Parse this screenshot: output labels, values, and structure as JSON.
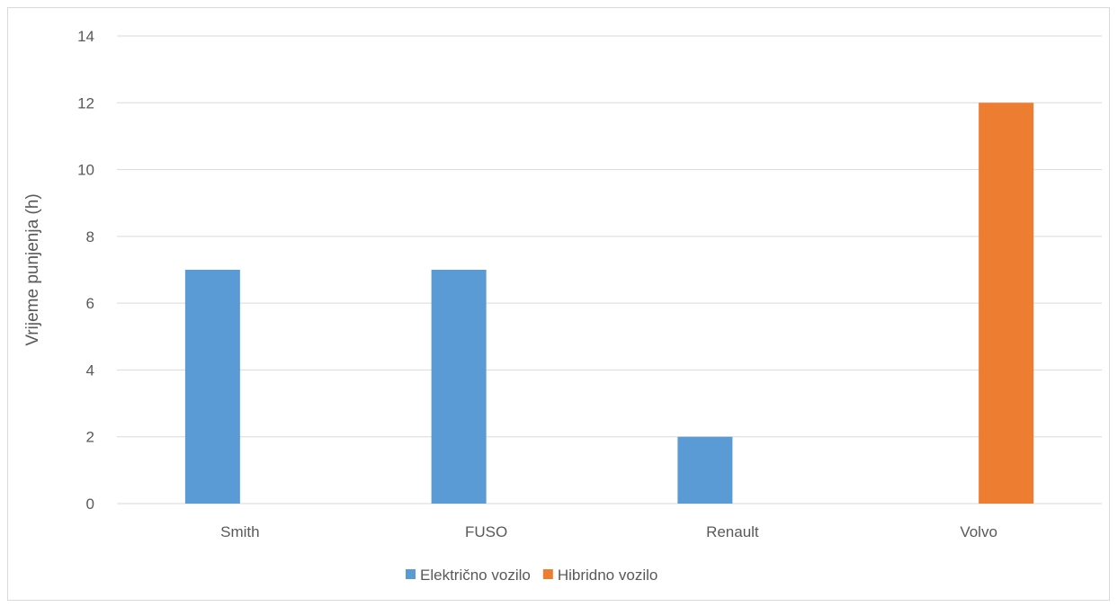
{
  "chart_data": {
    "type": "bar",
    "title": "",
    "xlabel": "",
    "ylabel": "Vrijeme punjenja (h)",
    "categories": [
      "Smith",
      "FUSO",
      "Renault",
      "Volvo"
    ],
    "ylim": [
      0,
      14
    ],
    "yticks": [
      0,
      2,
      4,
      6,
      8,
      10,
      12,
      14
    ],
    "grid": true,
    "legend_position": "bottom",
    "series": [
      {
        "name": "Električno vozilo",
        "color": "#5b9bd5",
        "values": [
          7,
          7,
          2,
          null
        ]
      },
      {
        "name": "Hibridno vozilo",
        "color": "#ed7d31",
        "values": [
          null,
          null,
          null,
          12
        ]
      }
    ]
  }
}
